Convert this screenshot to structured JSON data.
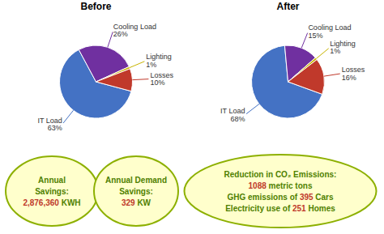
{
  "chart_data": [
    {
      "type": "pie",
      "title": "Before",
      "categories": [
        "IT Load",
        "Cooling Load",
        "Lighting",
        "Losses"
      ],
      "values": [
        63,
        26,
        1,
        10
      ],
      "value_labels": [
        "63%",
        "26%",
        "1%",
        "10%"
      ],
      "colors": [
        "#4472C4",
        "#7030A0",
        "#C8B400",
        "#C0392B"
      ],
      "data_labels": true,
      "annotations": [
        "Annual\nSavings:\n2,876,360 KWH",
        "Annual Demand\nSavings:\n329 KW",
        "Reduction in CO₂ Emissions:\n1088 metric tons\nGHG emissions of 395 Cars\nElectricity use of 251 Homes"
      ]
    },
    {
      "type": "pie",
      "title": "After",
      "categories": [
        "IT Load",
        "Cooling Load",
        "Lighting",
        "Losses"
      ],
      "values": [
        68,
        15,
        1,
        16
      ],
      "value_labels": [
        "68%",
        "15%",
        "1%",
        "16%"
      ],
      "colors": [
        "#4472C4",
        "#7030A0",
        "#C8B400",
        "#C0392B"
      ],
      "data_labels": true
    }
  ]
}
